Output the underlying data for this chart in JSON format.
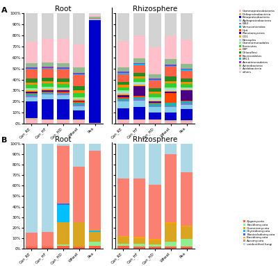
{
  "categories": [
    "Can_RE",
    "Can_HF",
    "Can_HD",
    "Wheat",
    "Pea"
  ],
  "bact_colors": [
    "#FFB6C1",
    "#D2B48C",
    "#0000CD",
    "#87CEEB",
    "#9370DB",
    "#20B2AA",
    "#FF4500",
    "#4B0082",
    "#FFA500",
    "#ADD8E6",
    "#90EE90",
    "#32CD32",
    "#FF8C00",
    "#228B22",
    "#FF6347",
    "#00BFFF",
    "#9932CC",
    "#8FBC8F",
    "#FFC0CB",
    "#D3D3D3"
  ],
  "bact_labels": [
    "Gammaproteobacteria",
    "Deltaproteobacteria",
    "Betaproteobacteria",
    "Alphaproteobacteria",
    "WS3",
    "Verrucomicrobia",
    "Hpit",
    "Planctomycetes",
    "OD1",
    "Nitrospira",
    "Gammamonadales",
    "Firmicutes",
    "FBP",
    "Chloroflexi",
    "Bacteroidetes",
    "BRC1",
    "Armatimonadetes",
    "Actinobacteria",
    "Acidobacteria",
    "others"
  ],
  "fungi_colors": [
    "#FF6347",
    "#90EE90",
    "#DAA520",
    "#00BFFF",
    "#4169E1",
    "#FFA500",
    "#FA8072",
    "#ADD8E6"
  ],
  "fungi_labels": [
    "Zygomycota",
    "Basidiomycota",
    "Glomeromycota",
    "Chytridiomycota",
    "Blastocladiomycota",
    "Basidiomycota ",
    "Ascomycota",
    "unidentified fungi"
  ],
  "bact_root": {
    "Can_RE": [
      0.04,
      0.01,
      0.15,
      0.04,
      0.01,
      0.02,
      0.01,
      0.01,
      0.01,
      0.01,
      0.01,
      0.03,
      0.02,
      0.04,
      0.08,
      0.01,
      0.01,
      0.04,
      0.19,
      0.26
    ],
    "Can_HF": [
      0.03,
      0.01,
      0.18,
      0.04,
      0.01,
      0.01,
      0.01,
      0.01,
      0.01,
      0.01,
      0.01,
      0.03,
      0.02,
      0.03,
      0.08,
      0.01,
      0.01,
      0.04,
      0.21,
      0.23
    ],
    "Can_HD": [
      0.03,
      0.01,
      0.18,
      0.04,
      0.01,
      0.01,
      0.01,
      0.01,
      0.01,
      0.01,
      0.01,
      0.03,
      0.02,
      0.03,
      0.08,
      0.01,
      0.01,
      0.04,
      0.22,
      0.23
    ],
    "Wheat": [
      0.03,
      0.01,
      0.08,
      0.04,
      0.01,
      0.02,
      0.01,
      0.01,
      0.01,
      0.01,
      0.01,
      0.04,
      0.02,
      0.04,
      0.1,
      0.01,
      0.01,
      0.05,
      0.21,
      0.28
    ],
    "Pea": [
      0.01,
      0.0,
      0.93,
      0.01,
      0.0,
      0.0,
      0.0,
      0.0,
      0.0,
      0.0,
      0.0,
      0.0,
      0.0,
      0.0,
      0.01,
      0.0,
      0.0,
      0.01,
      0.01,
      0.02
    ]
  },
  "bact_rhizo": {
    "Can_RE": [
      0.03,
      0.01,
      0.1,
      0.06,
      0.01,
      0.02,
      0.01,
      0.02,
      0.01,
      0.02,
      0.01,
      0.03,
      0.02,
      0.03,
      0.07,
      0.01,
      0.01,
      0.04,
      0.24,
      0.25
    ],
    "Can_HF": [
      0.03,
      0.01,
      0.11,
      0.06,
      0.01,
      0.02,
      0.01,
      0.09,
      0.01,
      0.02,
      0.01,
      0.03,
      0.02,
      0.03,
      0.07,
      0.01,
      0.01,
      0.04,
      0.21,
      0.2
    ],
    "Can_HD": [
      0.03,
      0.01,
      0.06,
      0.05,
      0.01,
      0.02,
      0.01,
      0.01,
      0.01,
      0.02,
      0.01,
      0.03,
      0.02,
      0.03,
      0.07,
      0.01,
      0.01,
      0.04,
      0.24,
      0.31
    ],
    "Wheat": [
      0.02,
      0.01,
      0.07,
      0.05,
      0.01,
      0.03,
      0.09,
      0.01,
      0.01,
      0.02,
      0.01,
      0.04,
      0.02,
      0.04,
      0.09,
      0.01,
      0.01,
      0.05,
      0.21,
      0.21
    ],
    "Pea": [
      0.02,
      0.01,
      0.1,
      0.04,
      0.01,
      0.02,
      0.01,
      0.09,
      0.01,
      0.01,
      0.01,
      0.03,
      0.02,
      0.03,
      0.07,
      0.01,
      0.01,
      0.04,
      0.22,
      0.24
    ]
  },
  "fungi_root": {
    "Can_RE": [
      0.02,
      0.0,
      0.0,
      0.0,
      0.0,
      0.0,
      0.13,
      0.85
    ],
    "Can_HF": [
      0.02,
      0.0,
      0.0,
      0.0,
      0.0,
      0.0,
      0.14,
      0.84
    ],
    "Can_HD": [
      0.03,
      0.01,
      0.21,
      0.17,
      0.01,
      0.0,
      0.55,
      0.02
    ],
    "Wheat": [
      0.02,
      0.0,
      0.23,
      0.0,
      0.0,
      0.0,
      0.53,
      0.22
    ],
    "Pea": [
      0.03,
      0.04,
      0.09,
      0.01,
      0.0,
      0.01,
      0.75,
      0.07
    ]
  },
  "fungi_rhizo": {
    "Can_RE": [
      0.03,
      0.02,
      0.06,
      0.0,
      0.0,
      0.01,
      0.55,
      0.33
    ],
    "Can_HF": [
      0.02,
      0.03,
      0.05,
      0.0,
      0.0,
      0.01,
      0.56,
      0.33
    ],
    "Can_HD": [
      0.02,
      0.02,
      0.04,
      0.0,
      0.0,
      0.01,
      0.52,
      0.39
    ],
    "Wheat": [
      0.02,
      0.05,
      0.17,
      0.0,
      0.0,
      0.01,
      0.65,
      0.1
    ],
    "Pea": [
      0.02,
      0.07,
      0.12,
      0.0,
      0.0,
      0.01,
      0.51,
      0.27
    ]
  }
}
